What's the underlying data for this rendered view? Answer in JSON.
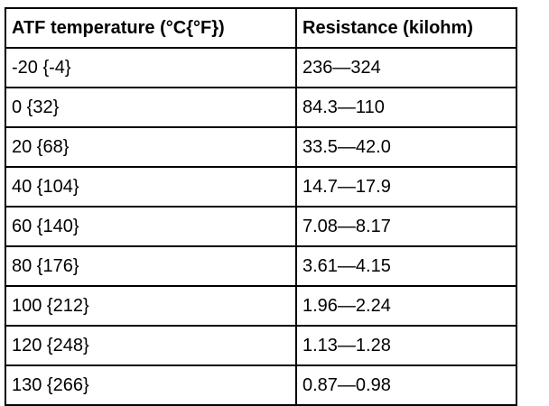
{
  "table": {
    "header": [
      "ATF temperature (°C{°F})",
      "Resistance (kilohm)"
    ],
    "rows": [
      [
        "-20 {-4}",
        "236—324"
      ],
      [
        "0 {32}",
        "84.3—110"
      ],
      [
        "20 {68}",
        "33.5—42.0"
      ],
      [
        "40 {104}",
        "14.7—17.9"
      ],
      [
        "60 {140}",
        "7.08—8.17"
      ],
      [
        "80 {176}",
        "3.61—4.15"
      ],
      [
        "100 {212}",
        "1.96—2.24"
      ],
      [
        "120 {248}",
        "1.13—1.28"
      ],
      [
        "130 {266}",
        "0.87—0.98"
      ]
    ]
  }
}
